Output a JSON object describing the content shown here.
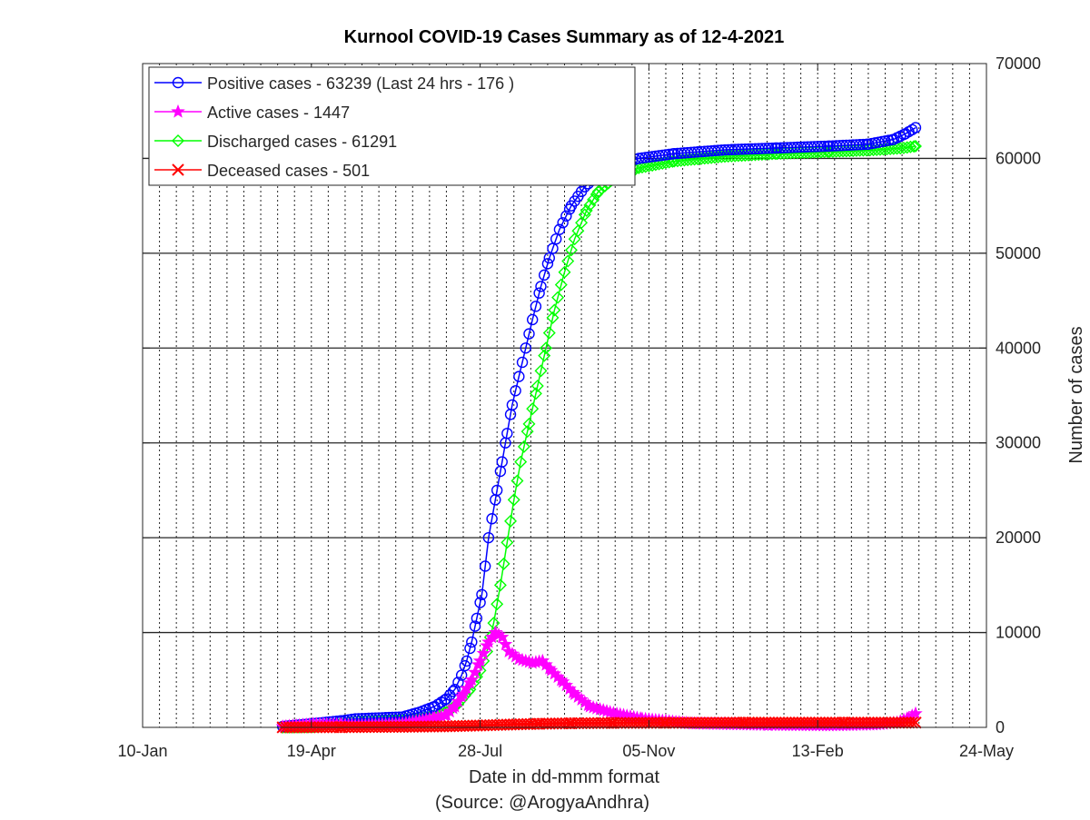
{
  "chart_data": {
    "type": "line",
    "title": "Kurnool COVID-19 Cases Summary as of 12-4-2021",
    "xlabel": "Date in dd-mmm format",
    "xlabel_source": "(Source: @ArogyaAndhra)",
    "ylabel": "Number of cases",
    "x_range": [
      "2020-01-10",
      "2021-05-24"
    ],
    "ylim": [
      0,
      70000
    ],
    "x_ticks": [
      "10-Jan",
      "19-Apr",
      "28-Jul",
      "05-Nov",
      "13-Feb",
      "24-May"
    ],
    "y_ticks": [
      "0",
      "10000",
      "20000",
      "30000",
      "40000",
      "50000",
      "60000",
      "70000"
    ],
    "grid": {
      "vertical": "dotted",
      "horizontal": "solid"
    },
    "y_axis_side": "right",
    "legend_position": "top-left",
    "series": [
      {
        "name": "Positive cases - 63239 (Last 24 hrs - 176 )",
        "color": "#0000ff",
        "marker": "circle",
        "points": [
          [
            "2020-04-02",
            100
          ],
          [
            "2020-04-20",
            400
          ],
          [
            "2020-05-07",
            700
          ],
          [
            "2020-05-15",
            900
          ],
          [
            "2020-06-12",
            1100
          ],
          [
            "2020-06-22",
            1600
          ],
          [
            "2020-07-01",
            2200
          ],
          [
            "2020-07-08",
            3000
          ],
          [
            "2020-07-13",
            4000
          ],
          [
            "2020-07-17",
            5500
          ],
          [
            "2020-07-20",
            7000
          ],
          [
            "2020-07-23",
            9000
          ],
          [
            "2020-07-26",
            11500
          ],
          [
            "2020-07-29",
            14000
          ],
          [
            "2020-07-31",
            17000
          ],
          [
            "2020-08-02",
            20000
          ],
          [
            "2020-08-04",
            22000
          ],
          [
            "2020-08-07",
            25000
          ],
          [
            "2020-08-10",
            28000
          ],
          [
            "2020-08-13",
            31000
          ],
          [
            "2020-08-16",
            34000
          ],
          [
            "2020-08-20",
            37000
          ],
          [
            "2020-08-24",
            40000
          ],
          [
            "2020-08-28",
            43000
          ],
          [
            "2020-09-02",
            46500
          ],
          [
            "2020-09-07",
            49500
          ],
          [
            "2020-09-13",
            52500
          ],
          [
            "2020-09-20",
            55000
          ],
          [
            "2020-09-28",
            57000
          ],
          [
            "2020-10-06",
            58300
          ],
          [
            "2020-10-16",
            59300
          ],
          [
            "2020-10-30",
            60000
          ],
          [
            "2020-11-20",
            60500
          ],
          [
            "2020-12-20",
            60900
          ],
          [
            "2021-01-20",
            61100
          ],
          [
            "2021-02-20",
            61300
          ],
          [
            "2021-03-15",
            61500
          ],
          [
            "2021-03-30",
            62000
          ],
          [
            "2021-04-06",
            62600
          ],
          [
            "2021-04-12",
            63239
          ]
        ]
      },
      {
        "name": "Active cases - 1447",
        "color": "#ff00ff",
        "marker": "star",
        "points": [
          [
            "2020-04-02",
            80
          ],
          [
            "2020-04-20",
            350
          ],
          [
            "2020-05-07",
            300
          ],
          [
            "2020-05-15",
            200
          ],
          [
            "2020-06-12",
            400
          ],
          [
            "2020-06-22",
            700
          ],
          [
            "2020-07-01",
            1000
          ],
          [
            "2020-07-08",
            1300
          ],
          [
            "2020-07-13",
            2200
          ],
          [
            "2020-07-18",
            3500
          ],
          [
            "2020-07-23",
            5000
          ],
          [
            "2020-07-28",
            7000
          ],
          [
            "2020-08-02",
            9000
          ],
          [
            "2020-08-06",
            10000
          ],
          [
            "2020-08-10",
            9500
          ],
          [
            "2020-08-14",
            8000
          ],
          [
            "2020-08-20",
            7200
          ],
          [
            "2020-08-28",
            6800
          ],
          [
            "2020-09-03",
            7000
          ],
          [
            "2020-09-08",
            6000
          ],
          [
            "2020-09-15",
            4800
          ],
          [
            "2020-09-22",
            3500
          ],
          [
            "2020-10-01",
            2200
          ],
          [
            "2020-10-15",
            1500
          ],
          [
            "2020-11-01",
            900
          ],
          [
            "2020-12-01",
            400
          ],
          [
            "2021-01-15",
            250
          ],
          [
            "2021-02-20",
            200
          ],
          [
            "2021-03-20",
            300
          ],
          [
            "2021-04-01",
            500
          ],
          [
            "2021-04-08",
            1000
          ],
          [
            "2021-04-12",
            1447
          ]
        ]
      },
      {
        "name": "Discharged cases - 61291",
        "color": "#00ff00",
        "marker": "diamond",
        "points": [
          [
            "2020-04-02",
            0
          ],
          [
            "2020-04-20",
            50
          ],
          [
            "2020-05-07",
            400
          ],
          [
            "2020-05-15",
            600
          ],
          [
            "2020-06-12",
            700
          ],
          [
            "2020-06-22",
            900
          ],
          [
            "2020-07-01",
            1200
          ],
          [
            "2020-07-08",
            1600
          ],
          [
            "2020-07-15",
            2500
          ],
          [
            "2020-07-22",
            4000
          ],
          [
            "2020-07-28",
            6000
          ],
          [
            "2020-08-01",
            8000
          ],
          [
            "2020-08-05",
            11000
          ],
          [
            "2020-08-09",
            15000
          ],
          [
            "2020-08-13",
            19500
          ],
          [
            "2020-08-17",
            24000
          ],
          [
            "2020-08-21",
            28000
          ],
          [
            "2020-08-26",
            32000
          ],
          [
            "2020-08-31",
            36000
          ],
          [
            "2020-09-05",
            40000
          ],
          [
            "2020-09-10",
            44000
          ],
          [
            "2020-09-16",
            48000
          ],
          [
            "2020-09-22",
            51500
          ],
          [
            "2020-09-29",
            54500
          ],
          [
            "2020-10-06",
            56500
          ],
          [
            "2020-10-16",
            58000
          ],
          [
            "2020-10-30",
            59000
          ],
          [
            "2020-11-20",
            59700
          ],
          [
            "2020-12-20",
            60200
          ],
          [
            "2021-01-20",
            60500
          ],
          [
            "2021-02-20",
            60700
          ],
          [
            "2021-03-20",
            60900
          ],
          [
            "2021-04-05",
            61100
          ],
          [
            "2021-04-12",
            61291
          ]
        ]
      },
      {
        "name": "Deceased cases - 501",
        "color": "#ff0000",
        "marker": "x",
        "points": [
          [
            "2020-04-02",
            5
          ],
          [
            "2020-04-20",
            15
          ],
          [
            "2020-05-07",
            25
          ],
          [
            "2020-05-15",
            30
          ],
          [
            "2020-06-12",
            60
          ],
          [
            "2020-06-22",
            80
          ],
          [
            "2020-07-08",
            110
          ],
          [
            "2020-07-28",
            200
          ],
          [
            "2020-08-15",
            300
          ],
          [
            "2020-09-01",
            380
          ],
          [
            "2020-09-20",
            430
          ],
          [
            "2020-10-15",
            470
          ],
          [
            "2020-11-15",
            485
          ],
          [
            "2021-01-01",
            490
          ],
          [
            "2021-03-01",
            493
          ],
          [
            "2021-04-12",
            501
          ]
        ]
      }
    ]
  }
}
